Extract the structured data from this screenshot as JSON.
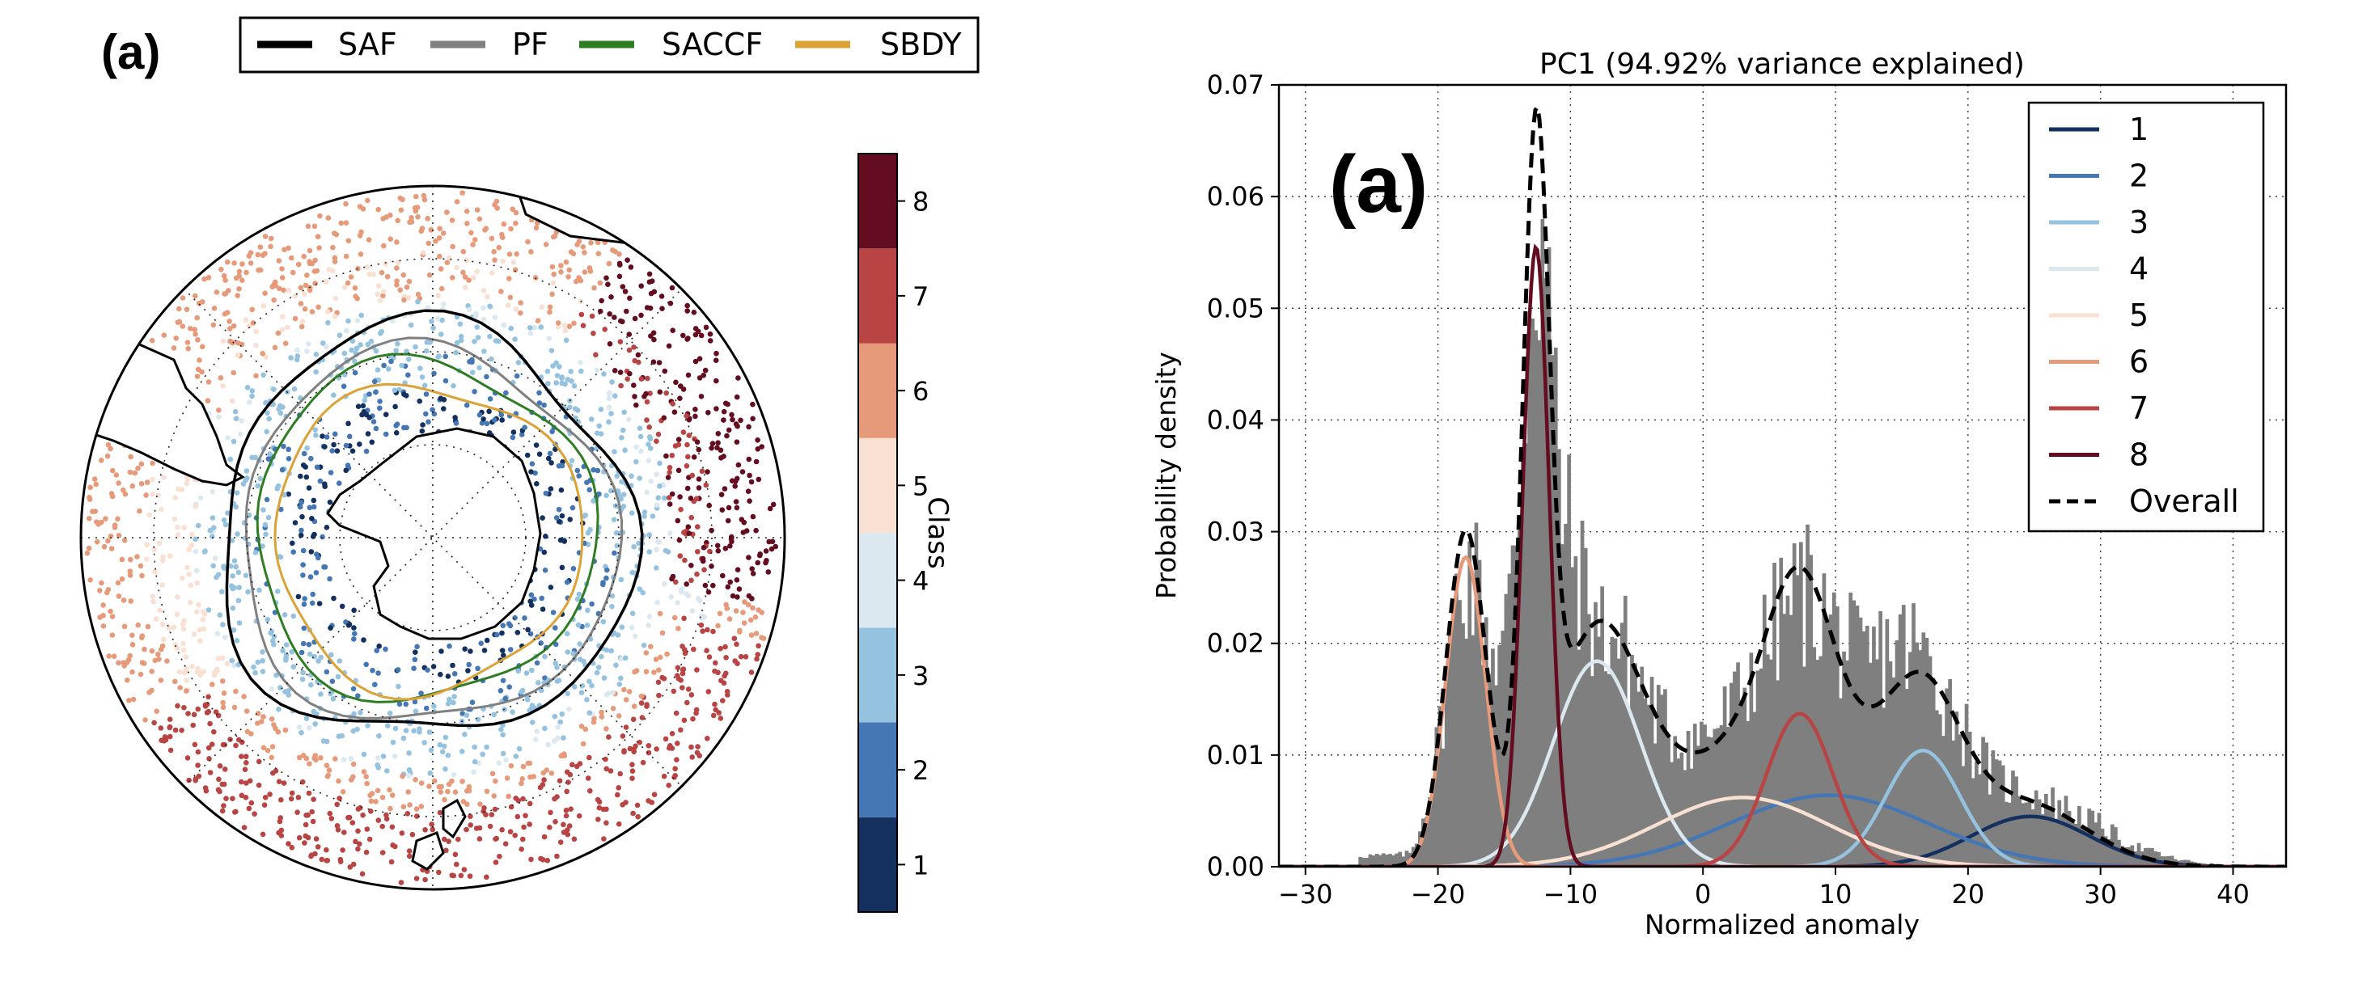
{
  "colors": {
    "class": [
      "#13305f",
      "#4577b5",
      "#94c2df",
      "#dbe8f0",
      "#f8e0d2",
      "#e69a7a",
      "#b84444",
      "#650d20"
    ],
    "fronts": {
      "SAF": "#000000",
      "PF": "#808080",
      "SACCF": "#2e7d23",
      "SBDY": "#dba235"
    },
    "histogram": "#7f7f7f",
    "overall": "#000000"
  },
  "map_panel": {
    "label": "(a)",
    "legend": [
      {
        "key": "SAF",
        "label": "SAF"
      },
      {
        "key": "PF",
        "label": "PF"
      },
      {
        "key": "SACCF",
        "label": "SACCF"
      },
      {
        "key": "SBDY",
        "label": "SBDY"
      }
    ],
    "colorbar": {
      "title": "Class",
      "ticks": [
        "1",
        "2",
        "3",
        "4",
        "5",
        "6",
        "7",
        "8"
      ]
    }
  },
  "chart_data": {
    "type": "line",
    "panel_label": "(a)",
    "title": "PC1 (94.92% variance explained)",
    "xlabel": "Normalized anomaly",
    "ylabel": "Probability density",
    "xlim": [
      -32,
      44
    ],
    "ylim": [
      0,
      0.07
    ],
    "xticks": [
      -30,
      -20,
      -10,
      0,
      10,
      20,
      30,
      40
    ],
    "xtick_labels": [
      "−30",
      "−20",
      "−10",
      "0",
      "10",
      "20",
      "30",
      "40"
    ],
    "yticks": [
      0,
      0.01,
      0.02,
      0.03,
      0.04,
      0.05,
      0.06,
      0.07
    ],
    "ytick_labels": [
      "0.00",
      "0.01",
      "0.02",
      "0.03",
      "0.04",
      "0.05",
      "0.06",
      "0.07"
    ],
    "grid": true,
    "legend_position": "top-right",
    "components": [
      {
        "name": "1",
        "mean": 24.7,
        "peak": 0.0045,
        "sd": 4.5
      },
      {
        "name": "2",
        "mean": 9.5,
        "peak": 0.0064,
        "sd": 7.5
      },
      {
        "name": "3",
        "mean": 16.6,
        "peak": 0.0104,
        "sd": 2.8
      },
      {
        "name": "4",
        "mean": -8.0,
        "peak": 0.0184,
        "sd": 3.3
      },
      {
        "name": "5",
        "mean": 3.0,
        "peak": 0.0062,
        "sd": 6.5
      },
      {
        "name": "6",
        "mean": -17.9,
        "peak": 0.0277,
        "sd": 1.5
      },
      {
        "name": "7",
        "mean": 7.3,
        "peak": 0.0137,
        "sd": 2.5
      },
      {
        "name": "8",
        "mean": -12.6,
        "peak": 0.0555,
        "sd": 1.0
      }
    ],
    "overall": {
      "name": "Overall",
      "style": "dashed"
    },
    "histogram": {
      "x": [
        -22,
        -20,
        -18,
        -16,
        -14,
        -12,
        -10,
        -8,
        -6,
        -4,
        -2,
        0,
        2,
        4,
        6,
        8,
        10,
        12,
        14,
        16,
        18,
        20,
        22,
        24,
        26,
        28,
        30,
        32,
        34,
        36,
        38,
        40
      ],
      "values": [
        0.002,
        0.012,
        0.026,
        0.026,
        0.038,
        0.055,
        0.039,
        0.022,
        0.021,
        0.016,
        0.013,
        0.014,
        0.016,
        0.02,
        0.022,
        0.025,
        0.024,
        0.023,
        0.025,
        0.023,
        0.018,
        0.013,
        0.009,
        0.008,
        0.007,
        0.006,
        0.005,
        0.003,
        0.002,
        0.001,
        0.0005,
        0.0002
      ]
    }
  }
}
